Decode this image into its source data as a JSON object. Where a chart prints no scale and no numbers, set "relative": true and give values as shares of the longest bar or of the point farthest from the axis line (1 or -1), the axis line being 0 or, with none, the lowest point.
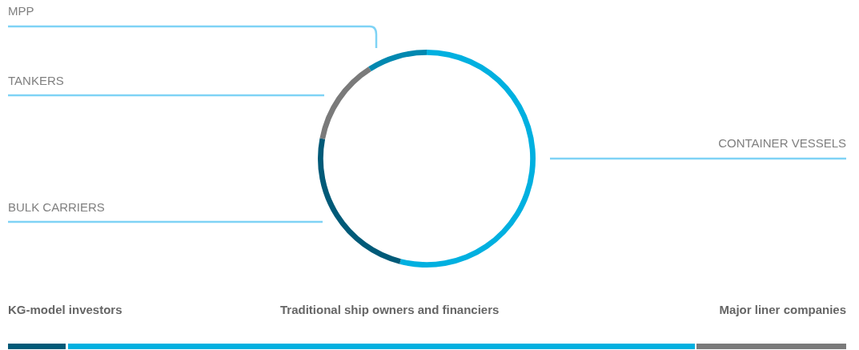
{
  "chart_data": {
    "type": "donut",
    "relative": true,
    "categories": [
      "CONTAINER VESSELS",
      "BULK CARRIERS",
      "TANKERS",
      "MPP"
    ],
    "values": [
      54,
      24,
      13,
      9
    ],
    "colors": [
      "#00b0e0",
      "#005a78",
      "#7a7a7a",
      "#0088b0"
    ],
    "legend": false,
    "annotations": [
      "KG-model investors",
      "Traditional ship owners and financiers",
      "Major liner companies"
    ]
  }
}
